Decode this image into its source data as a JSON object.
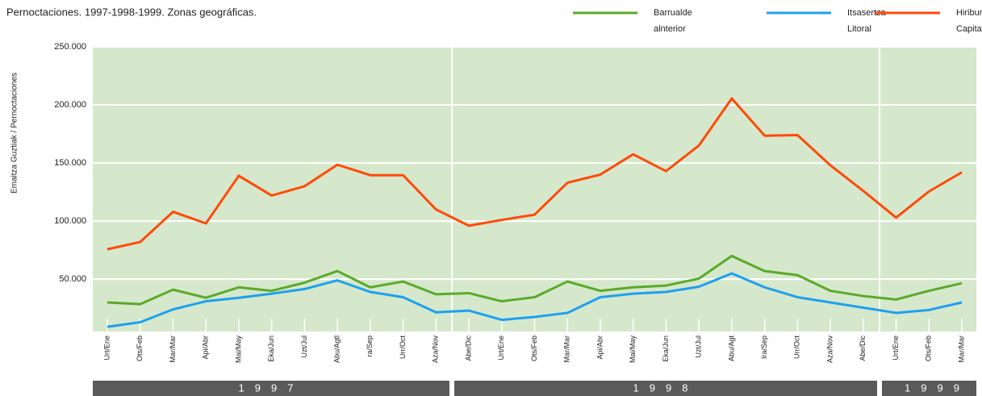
{
  "chart_data": {
    "type": "line",
    "title": "Pernoctaciones. 1997-1998-1999. Zonas geográficas.",
    "y_label": "Emaitza Guztiak / Pernoctaciones",
    "categories": [
      "Urt/Ene",
      "Ots/Feb",
      "Mar/Mar",
      "Api/Abr",
      "Mai/May",
      "Eka/Jun",
      "Uzt/Jul",
      "Abu/Agtl",
      "ra/Sep",
      "Urr/Oct",
      "Aza/Nov",
      "Abe/Dic",
      "Urt/Ene",
      "Ots/Feb",
      "Mar/Mar",
      "Api/Abr",
      "Mai/May",
      "Eka/Jun",
      "Uzt/Jul",
      "Abu/Agt",
      "Ira/Sep",
      "Urr/Oct",
      "Aza/Nov",
      "Abe/Dic",
      "Urt/Ene",
      "Ots/Feb",
      "Mar/Mar"
    ],
    "years": [
      "1997",
      "1998",
      "1999"
    ],
    "series": [
      {
        "name": "Barrualde alnterior",
        "color": "#5aaa2a",
        "values": [
          30000,
          28500,
          41000,
          34000,
          43000,
          40000,
          47000,
          57000,
          43000,
          48000,
          37000,
          38000,
          31000,
          34500,
          48000,
          40000,
          43000,
          44500,
          50500,
          70000,
          57000,
          53500,
          40000,
          35500,
          32500,
          40000,
          46500
        ]
      },
      {
        "name": "Itsasertza Litoral",
        "color": "#1ea0f0",
        "values": [
          9000,
          13000,
          24000,
          31000,
          34000,
          37500,
          41500,
          49000,
          39000,
          34500,
          21500,
          23000,
          15000,
          17500,
          21000,
          34500,
          37500,
          39000,
          43500,
          55000,
          43000,
          34500,
          30000,
          25500,
          21000,
          23500,
          30000
        ]
      },
      {
        "name": "Hiriburu Capitales",
        "color": "#ff4a0a",
        "values": [
          75700,
          82000,
          108000,
          98000,
          139000,
          122000,
          130000,
          148500,
          139500,
          139500,
          110000,
          96000,
          101000,
          105500,
          133000,
          140000,
          157500,
          143000,
          165000,
          205500,
          173500,
          174000,
          148000,
          126000,
          103000,
          125500,
          142000
        ]
      }
    ],
    "ylim": [
      5000,
      250000
    ],
    "yticks": [
      {
        "value": 50000,
        "label": "50.000"
      },
      {
        "value": 100000,
        "label": "100.000"
      },
      {
        "value": 150000,
        "label": "150.000"
      },
      {
        "value": 200000,
        "label": "200.000"
      },
      {
        "value": 250000,
        "label": "250.000"
      }
    ],
    "grid": true,
    "legend": "top-right",
    "background": "#d5e8cb"
  }
}
